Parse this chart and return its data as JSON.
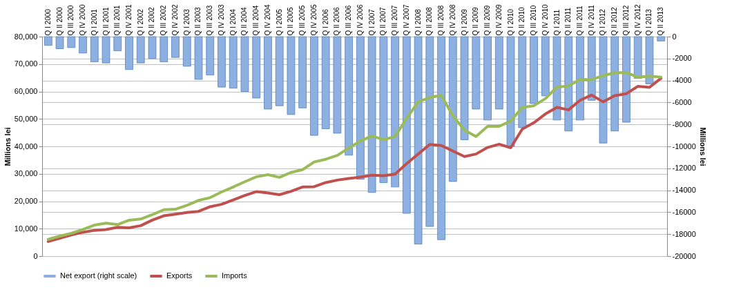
{
  "chart_data": {
    "type": "bar",
    "categories": [
      "Q I 2000",
      "Q II 2000",
      "Q III 2000",
      "Q IV 2000",
      "Q I 2001",
      "Q II 2001",
      "Q III 2001",
      "Q IV 2001",
      "Q I 2002",
      "Q II 2002",
      "Q III 2002",
      "Q IV 2002",
      "Q I 2003",
      "Q II 2003",
      "Q III 2003",
      "Q IV 2003",
      "Q I 2004",
      "Q II 2004",
      "Q III 2004",
      "Q IV 2004",
      "Q I 2005",
      "Q II 2005",
      "Q III 2005",
      "Q IV 2005",
      "Q I 2006",
      "Q II 2006",
      "Q III 2006",
      "Q IV 2006",
      "Q I 2007",
      "Q II 2007",
      "Q III 2007",
      "Q IV 2007",
      "Q I 2008",
      "Q II 2008",
      "Q III 2008",
      "Q IV 2008",
      "Q I 2009",
      "Q II 2009",
      "Q III 2009",
      "Q IV 2009",
      "Q I 2010",
      "Q II 2010",
      "Q III 2010",
      "Q IV 2010",
      "Q I 2011",
      "Q II 2011",
      "Q III 2011",
      "Q IV 2011",
      "Q I 2012",
      "Q II 2012",
      "Q III 2012",
      "Q IV 2012",
      "Q I 2013",
      "Q II 2013"
    ],
    "series": [
      {
        "name": "Net export (right scale)",
        "axis": "y2",
        "color": "#8eb0e0",
        "values": [
          -800,
          -1100,
          -1000,
          -1500,
          -2300,
          -2400,
          -1300,
          -3000,
          -2400,
          -2000,
          -2300,
          -1900,
          -2700,
          -3900,
          -3500,
          -4600,
          -4700,
          -5000,
          -5600,
          -6600,
          -6300,
          -7100,
          -6500,
          -9000,
          -8400,
          -8800,
          -10800,
          -13000,
          -14200,
          -13300,
          -13700,
          -16100,
          -18900,
          -17300,
          -18500,
          -13200,
          -9400,
          -6600,
          -7600,
          -6600,
          -10000,
          -8300,
          -6100,
          -5400,
          -7600,
          -8600,
          -7600,
          -5800,
          -9700,
          -8600,
          -7800,
          -3800,
          -4300,
          -400
        ]
      },
      {
        "name": "Exports",
        "type": "line",
        "color": "#c0504d",
        "values": [
          5300,
          6500,
          7700,
          8700,
          9400,
          9700,
          10500,
          10300,
          11100,
          13100,
          14700,
          15300,
          15900,
          16300,
          18000,
          18900,
          20500,
          22100,
          23500,
          23000,
          22400,
          23600,
          25200,
          25300,
          26800,
          27700,
          28300,
          28800,
          29500,
          29300,
          29900,
          33700,
          37200,
          40700,
          40300,
          38300,
          36300,
          37200,
          39600,
          40800,
          39500,
          46300,
          48600,
          51800,
          54200,
          53300,
          56800,
          58700,
          56200,
          58500,
          59200,
          61900,
          61500,
          64800
        ]
      },
      {
        "name": "Imports",
        "type": "line",
        "color": "#9bbb59",
        "values": [
          6100,
          7300,
          8300,
          9700,
          11300,
          12000,
          11500,
          13100,
          13500,
          15100,
          16900,
          17100,
          18500,
          20300,
          21300,
          23400,
          25200,
          27100,
          28900,
          29700,
          28700,
          30500,
          31500,
          34300,
          35300,
          36700,
          39400,
          41900,
          43800,
          42400,
          43600,
          50200,
          56200,
          57800,
          58600,
          51100,
          45900,
          43600,
          47300,
          47300,
          49200,
          54200,
          54800,
          57400,
          61600,
          62000,
          64400,
          64300,
          65800,
          66800,
          66900,
          65200,
          65600,
          65200
        ]
      }
    ],
    "ylabel": "Millions lei",
    "y2label": "Millions lei",
    "ylim": [
      0,
      80000
    ],
    "yticks": [
      0,
      {
        "value": 10000,
        "label": "10,000"
      },
      {
        "value": 20000,
        "label": "20,000"
      },
      {
        "value": 30000,
        "label": "30,000"
      },
      {
        "value": 40000,
        "label": "40,000"
      },
      {
        "value": 50000,
        "label": "50,000"
      },
      {
        "value": 60000,
        "label": "60,000"
      },
      {
        "value": 70000,
        "label": "70,000"
      },
      {
        "value": 80000,
        "label": "80,000"
      }
    ],
    "y2lim": [
      -20000,
      0
    ],
    "y2ticks": [
      -20000,
      -18000,
      -16000,
      -14000,
      -12000,
      -10000,
      -8000,
      -6000,
      -4000,
      -2000,
      0
    ],
    "grid": "y",
    "legend": "bottom"
  }
}
